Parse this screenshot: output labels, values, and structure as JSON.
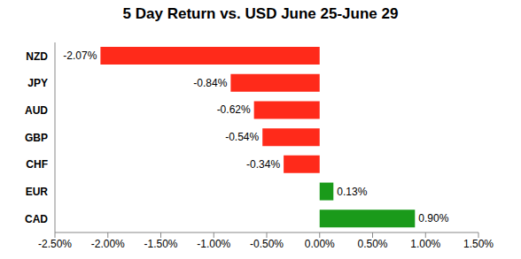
{
  "chart_data": {
    "type": "bar",
    "title": "5 Day Return vs. USD June 25-June 29",
    "orientation": "horizontal",
    "categories": [
      "NZD",
      "JPY",
      "AUD",
      "GBP",
      "CHF",
      "EUR",
      "CAD"
    ],
    "values": [
      -2.07,
      -0.84,
      -0.62,
      -0.54,
      -0.34,
      0.13,
      0.9
    ],
    "value_labels": [
      "-2.07%",
      "-0.84%",
      "-0.62%",
      "-0.54%",
      "-0.34%",
      "0.13%",
      "0.90%"
    ],
    "colors": [
      "#ff2a1a",
      "#ff2a1a",
      "#ff2a1a",
      "#ff2a1a",
      "#ff2a1a",
      "#1a9a1a",
      "#1a9a1a"
    ],
    "data_labels": true,
    "grid": false,
    "xlim": [
      -2.5,
      1.5
    ],
    "xticks": [
      {
        "value": -2.5,
        "label": "-2.50%"
      },
      {
        "value": -2,
        "label": "-2.00%"
      },
      {
        "value": -1.5,
        "label": "-1.50%"
      },
      {
        "value": -1,
        "label": "-1.00%"
      },
      {
        "value": -0.5,
        "label": "-0.50%"
      },
      {
        "value": 0,
        "label": "0.00%"
      },
      {
        "value": 0.5,
        "label": "0.50%"
      },
      {
        "value": 1,
        "label": "1.00%"
      },
      {
        "value": 1.5,
        "label": "1.50%"
      }
    ]
  }
}
